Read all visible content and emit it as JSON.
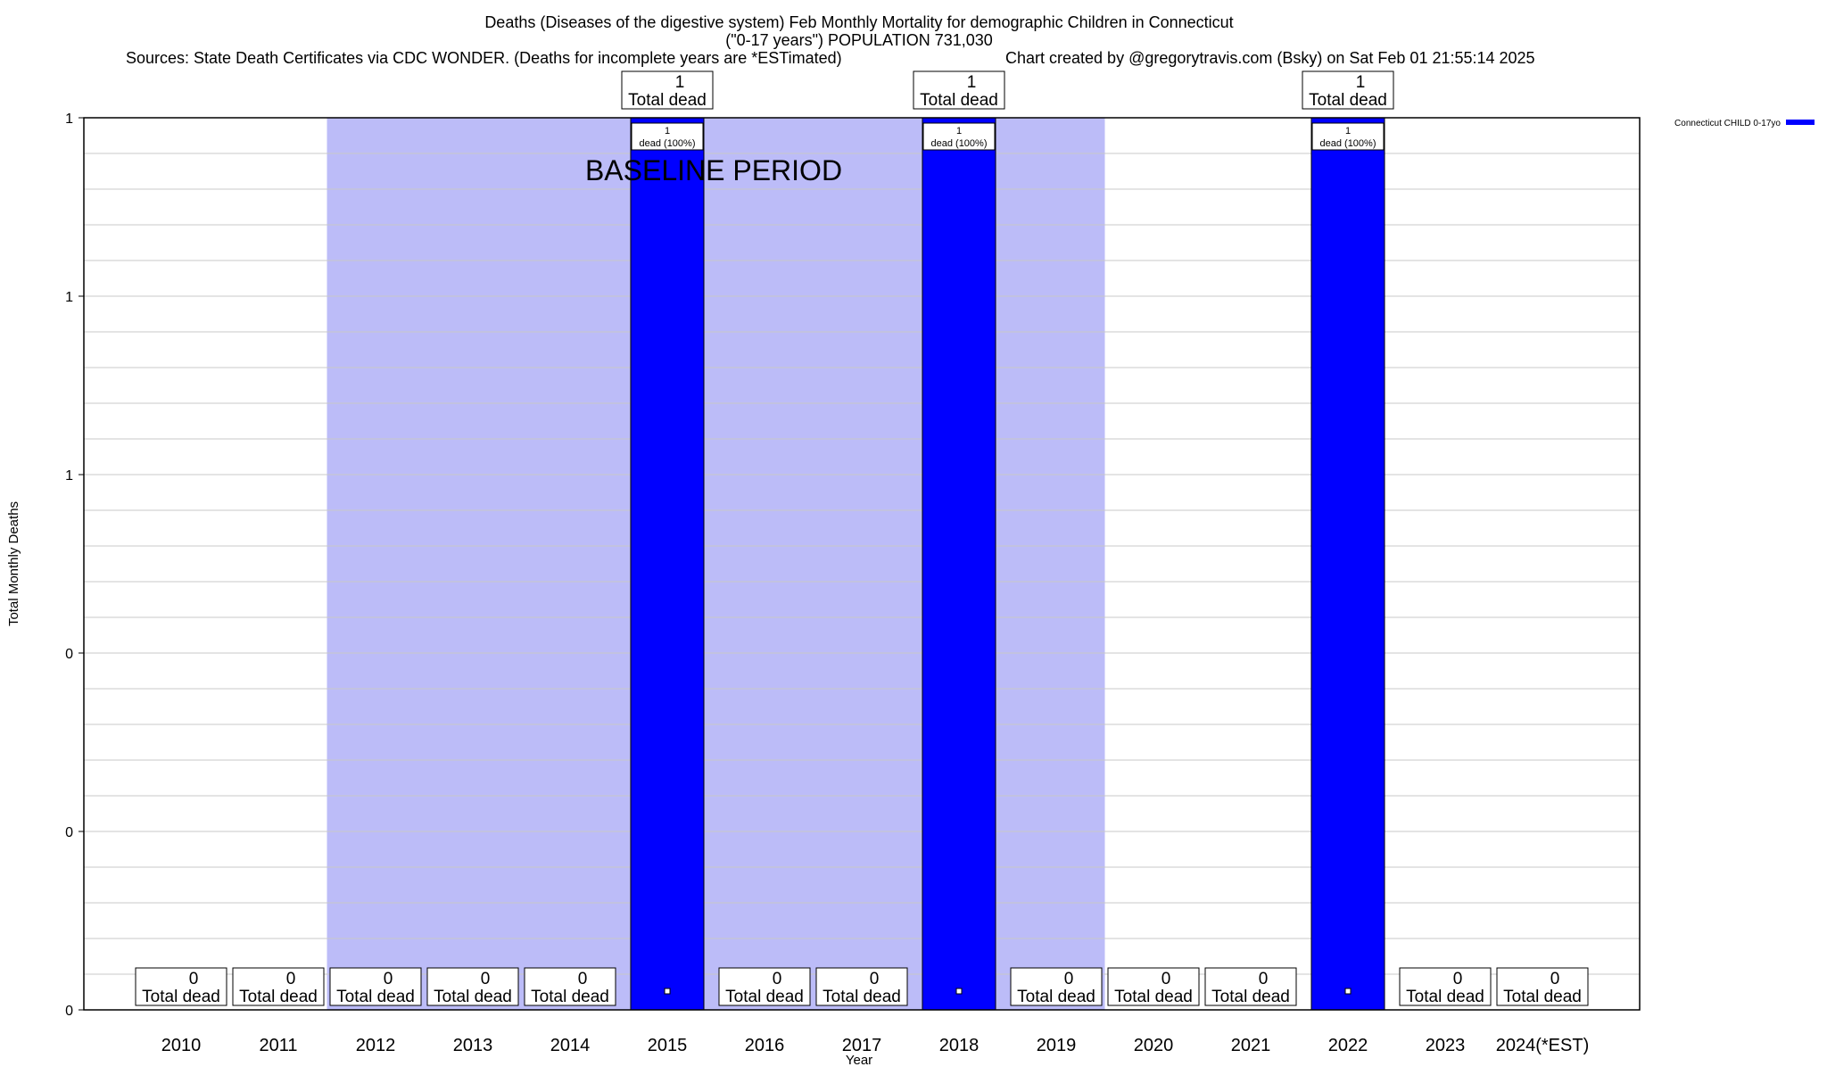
{
  "chart_data": {
    "type": "bar",
    "title": "Deaths (Diseases of the digestive system) Feb Monthly Mortality for demographic Children in Connecticut",
    "subtitle": "(\"0-17 years\") POPULATION 731,030",
    "sources": "Sources: State Death Certificates via CDC WONDER. (Deaths for incomplete years are *ESTimated)",
    "credit": "Chart created by @gregorytravis.com (Bsky) on Sat Feb 01 21:55:14 2025",
    "xlabel": "Year",
    "ylabel": "Total Monthly Deaths",
    "categories": [
      "2010",
      "2011",
      "2012",
      "2013",
      "2014",
      "2015",
      "2016",
      "2017",
      "2018",
      "2019",
      "2020",
      "2021",
      "2022",
      "2023",
      "2024(*EST)"
    ],
    "series": [
      {
        "name": "Connecticut CHILD 0-17yo",
        "color": "#0000ff",
        "values": [
          0,
          0,
          0,
          0,
          0,
          1,
          0,
          0,
          1,
          0,
          0,
          0,
          1,
          0,
          0
        ]
      }
    ],
    "ylim": [
      0,
      1
    ],
    "ytick_values": [
      0,
      0.2,
      0.4,
      0.6,
      0.8,
      1
    ],
    "ytick_labels": [
      "0",
      "0",
      "0",
      "1",
      "1",
      "1"
    ],
    "minor_grid_step": 0.04,
    "grid": true,
    "legend_position": "top-right",
    "total_label_text": "Total dead",
    "bar_label_suffix": "dead (100%)",
    "baseline_period": {
      "label": "BASELINE PERIOD",
      "start": "2012",
      "end": "2019",
      "color": "#bcbcf8"
    }
  }
}
